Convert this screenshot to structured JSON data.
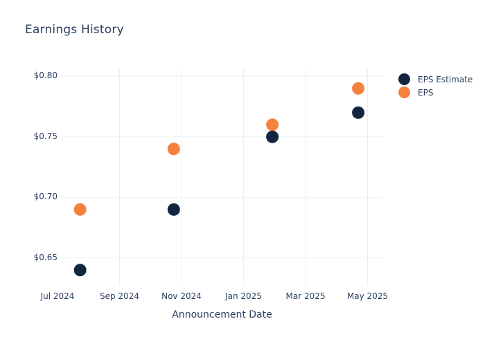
{
  "chart": {
    "title": "Earnings History",
    "x_axis_label": "Announcement Date"
  },
  "legend": {
    "items": [
      {
        "label": "EPS Estimate",
        "color": "#13253f"
      },
      {
        "label": "EPS",
        "color": "#f5813c"
      }
    ]
  },
  "colors": {
    "eps_estimate": "#13253f",
    "eps": "#f5813c",
    "text": "#2a3f5f",
    "gridline": "#ebf0f8",
    "background": "#ffffff"
  },
  "chart_data": {
    "type": "scatter",
    "title": "Earnings History",
    "xlabel": "Announcement Date",
    "ylabel": "",
    "grid": true,
    "legend_position": "right-top",
    "marker_diameter_px": 18,
    "x_ticks": [
      {
        "label": "Jul 2024",
        "month_offset": 0,
        "gridline": false
      },
      {
        "label": "Sep 2024",
        "month_offset": 2,
        "gridline": true
      },
      {
        "label": "Nov 2024",
        "month_offset": 4,
        "gridline": true
      },
      {
        "label": "Jan 2025",
        "month_offset": 6,
        "gridline": true
      },
      {
        "label": "Mar 2025",
        "month_offset": 8,
        "gridline": true
      },
      {
        "label": "May 2025",
        "month_offset": 10,
        "gridline": true
      }
    ],
    "y_ticks": [
      {
        "label": "$0.65",
        "value": 0.65
      },
      {
        "label": "$0.70",
        "value": 0.7
      },
      {
        "label": "$0.75",
        "value": 0.75
      },
      {
        "label": "$0.80",
        "value": 0.8
      }
    ],
    "ylim": [
      0.627,
      0.807
    ],
    "xlim_months": [
      0.112,
      10.503
    ],
    "series": [
      {
        "name": "EPS",
        "color": "#f5813c",
        "points": [
          {
            "date_approx": "2024-07-23",
            "month_offset": 0.73,
            "value": 0.69
          },
          {
            "date_approx": "2024-10-24",
            "month_offset": 3.75,
            "value": 0.74
          },
          {
            "date_approx": "2025-01-29",
            "month_offset": 6.93,
            "value": 0.76
          },
          {
            "date_approx": "2025-04-22",
            "month_offset": 9.7,
            "value": 0.79
          }
        ]
      },
      {
        "name": "EPS Estimate",
        "color": "#13253f",
        "points": [
          {
            "date_approx": "2024-07-23",
            "month_offset": 0.73,
            "value": 0.64
          },
          {
            "date_approx": "2024-10-24",
            "month_offset": 3.75,
            "value": 0.69
          },
          {
            "date_approx": "2025-01-29",
            "month_offset": 6.93,
            "value": 0.75
          },
          {
            "date_approx": "2025-04-22",
            "month_offset": 9.7,
            "value": 0.77
          }
        ]
      }
    ]
  }
}
